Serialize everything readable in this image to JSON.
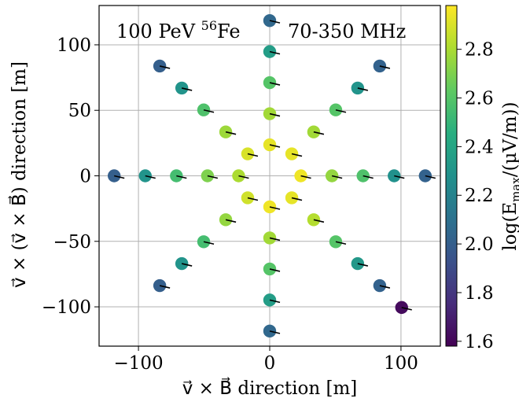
{
  "chart_data": {
    "type": "scatter",
    "annotations": {
      "left": "100 PeV ",
      "left_sup": "56",
      "left_tail": "Fe",
      "right": "70-350 MHz"
    },
    "xlabel": "v⃗ × B⃗ direction [m]",
    "ylabel": "v⃗ × (v⃗ × B⃗) direction [m]",
    "colorbar_label": "log(E",
    "colorbar_label_sub": "max",
    "colorbar_label_tail": "/(µV/m))",
    "xlim": [
      -130,
      130
    ],
    "ylim": [
      -130,
      130
    ],
    "xticks": [
      -100,
      0,
      100
    ],
    "xtick_labels": [
      "−100",
      "0",
      "100"
    ],
    "yticks": [
      -100,
      -50,
      0,
      50,
      100
    ],
    "ytick_labels": [
      "−100",
      "−50",
      "0",
      "50",
      "100"
    ],
    "cbar_range": [
      1.58,
      2.98
    ],
    "cbar_ticks": [
      1.6,
      1.8,
      2.0,
      2.2,
      2.4,
      2.6,
      2.8
    ],
    "cbar_tick_labels": [
      "1.6",
      "1.8",
      "2.0",
      "2.2",
      "2.4",
      "2.6",
      "2.8"
    ],
    "colormap": "viridis",
    "grid": true,
    "points": [
      {
        "x": 23.7,
        "y": 0,
        "v": 2.95
      },
      {
        "x": 47.4,
        "y": 0,
        "v": 2.75
      },
      {
        "x": 71.1,
        "y": 0,
        "v": 2.58
      },
      {
        "x": 94.8,
        "y": 0,
        "v": 2.28
      },
      {
        "x": 118.5,
        "y": 0,
        "v": 2.02
      },
      {
        "x": 16.8,
        "y": 16.8,
        "v": 2.93
      },
      {
        "x": 33.5,
        "y": 33.5,
        "v": 2.78
      },
      {
        "x": 50.3,
        "y": 50.3,
        "v": 2.6
      },
      {
        "x": 67.0,
        "y": 67.0,
        "v": 2.3
      },
      {
        "x": 83.8,
        "y": 83.8,
        "v": 2.02
      },
      {
        "x": 0,
        "y": 23.7,
        "v": 2.93
      },
      {
        "x": 0,
        "y": 47.4,
        "v": 2.78
      },
      {
        "x": 0,
        "y": 71.1,
        "v": 2.6
      },
      {
        "x": 0,
        "y": 94.8,
        "v": 2.35
      },
      {
        "x": 0,
        "y": 118.5,
        "v": 2.05
      },
      {
        "x": -16.8,
        "y": 16.8,
        "v": 2.9
      },
      {
        "x": -33.5,
        "y": 33.5,
        "v": 2.77
      },
      {
        "x": -50.3,
        "y": 50.3,
        "v": 2.58
      },
      {
        "x": -67.0,
        "y": 67.0,
        "v": 2.3
      },
      {
        "x": -83.8,
        "y": 83.8,
        "v": 2.0
      },
      {
        "x": -23.7,
        "y": 0,
        "v": 2.8
      },
      {
        "x": -47.4,
        "y": 0,
        "v": 2.7
      },
      {
        "x": -71.1,
        "y": 0,
        "v": 2.55
      },
      {
        "x": -94.8,
        "y": 0,
        "v": 2.3
      },
      {
        "x": -118.5,
        "y": 0,
        "v": 2.0
      },
      {
        "x": -16.8,
        "y": -16.8,
        "v": 2.88
      },
      {
        "x": -33.5,
        "y": -33.5,
        "v": 2.75
      },
      {
        "x": -50.3,
        "y": -50.3,
        "v": 2.55
      },
      {
        "x": -67.0,
        "y": -67.0,
        "v": 2.3
      },
      {
        "x": -83.8,
        "y": -83.8,
        "v": 2.0
      },
      {
        "x": 0,
        "y": -23.7,
        "v": 2.95
      },
      {
        "x": 0,
        "y": -47.4,
        "v": 2.78
      },
      {
        "x": 0,
        "y": -71.1,
        "v": 2.6
      },
      {
        "x": 0,
        "y": -94.8,
        "v": 2.35
      },
      {
        "x": 0,
        "y": -118.5,
        "v": 2.05
      },
      {
        "x": 16.8,
        "y": -16.8,
        "v": 2.93
      },
      {
        "x": 33.5,
        "y": -33.5,
        "v": 2.82
      },
      {
        "x": 50.3,
        "y": -50.3,
        "v": 2.6
      },
      {
        "x": 67.0,
        "y": -67.0,
        "v": 2.32
      },
      {
        "x": 83.8,
        "y": -83.8,
        "v": 2.02
      },
      {
        "x": 100.5,
        "y": -100.5,
        "v": 1.62
      }
    ]
  }
}
